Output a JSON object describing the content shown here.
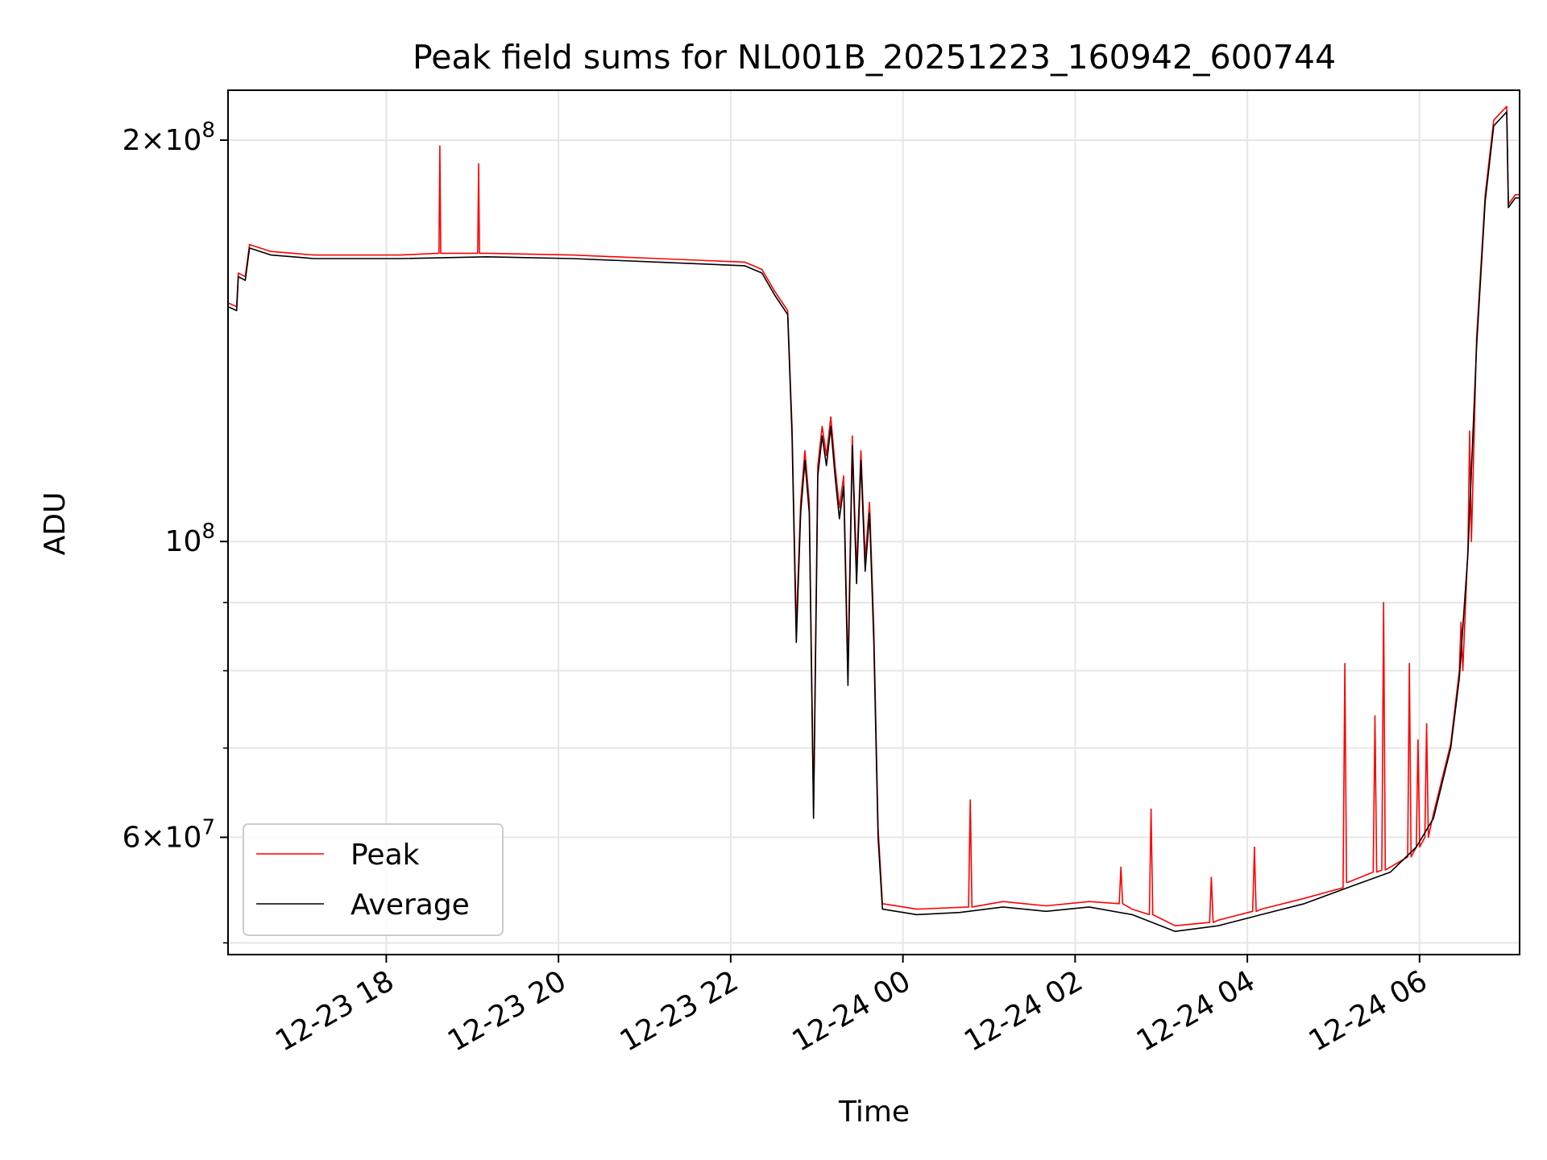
{
  "chart_data": {
    "type": "line",
    "title": "Peak field sums for NL001B_20251223_160942_600744",
    "xlabel": "Time",
    "ylabel": "ADU",
    "yscale": "log",
    "ylim": [
      49000000,
      218000000
    ],
    "x_unit": "hours since 2025-12-23 16:09:42",
    "xlim": [
      0.0,
      15.0
    ],
    "grid": true,
    "legend_position": "lower-left",
    "x_ticks": [
      {
        "label": "12-23 18",
        "value": 1.838
      },
      {
        "label": "12-23 20",
        "value": 3.838
      },
      {
        "label": "12-23 22",
        "value": 5.838
      },
      {
        "label": "12-24 00",
        "value": 7.838
      },
      {
        "label": "12-24 02",
        "value": 9.838
      },
      {
        "label": "12-24 04",
        "value": 11.838
      },
      {
        "label": "12-24 06",
        "value": 13.838
      }
    ],
    "y_major_ticks": [
      {
        "value": 60000000,
        "mantissa": "6",
        "base": "10",
        "exp": "7"
      },
      {
        "value": 100000000,
        "mantissa": "",
        "base": "10",
        "exp": "8"
      },
      {
        "value": 200000000,
        "mantissa": "2",
        "base": "10",
        "exp": "8"
      }
    ],
    "y_minor_ticks": [
      50000000,
      70000000,
      80000000,
      90000000
    ],
    "series": [
      {
        "name": "Average",
        "color": "#000000",
        "points": [
          [
            0.0,
            150000000
          ],
          [
            0.1,
            149000000
          ],
          [
            0.12,
            158000000
          ],
          [
            0.2,
            157000000
          ],
          [
            0.25,
            166000000
          ],
          [
            0.5,
            164000000
          ],
          [
            1.0,
            163000000
          ],
          [
            2.0,
            163000000
          ],
          [
            3.0,
            163500000
          ],
          [
            4.0,
            163000000
          ],
          [
            5.0,
            162000000
          ],
          [
            6.0,
            161000000
          ],
          [
            6.2,
            159000000
          ],
          [
            6.35,
            153000000
          ],
          [
            6.5,
            148000000
          ],
          [
            6.55,
            120000000
          ],
          [
            6.6,
            84000000
          ],
          [
            6.65,
            105000000
          ],
          [
            6.7,
            115000000
          ],
          [
            6.75,
            105000000
          ],
          [
            6.8,
            62000000
          ],
          [
            6.85,
            112000000
          ],
          [
            6.9,
            120000000
          ],
          [
            6.95,
            114000000
          ],
          [
            7.0,
            122000000
          ],
          [
            7.05,
            112000000
          ],
          [
            7.1,
            104000000
          ],
          [
            7.15,
            110000000
          ],
          [
            7.2,
            78000000
          ],
          [
            7.25,
            118000000
          ],
          [
            7.3,
            93000000
          ],
          [
            7.35,
            115000000
          ],
          [
            7.4,
            95000000
          ],
          [
            7.45,
            105000000
          ],
          [
            7.5,
            84000000
          ],
          [
            7.55,
            60000000
          ],
          [
            7.6,
            53000000
          ],
          [
            8.0,
            52500000
          ],
          [
            8.5,
            52700000
          ],
          [
            9.0,
            53200000
          ],
          [
            9.5,
            52800000
          ],
          [
            10.0,
            53200000
          ],
          [
            10.5,
            52500000
          ],
          [
            11.0,
            51000000
          ],
          [
            11.5,
            51500000
          ],
          [
            12.0,
            52500000
          ],
          [
            12.5,
            53500000
          ],
          [
            13.0,
            55000000
          ],
          [
            13.5,
            56500000
          ],
          [
            13.8,
            59000000
          ],
          [
            14.0,
            62000000
          ],
          [
            14.2,
            70000000
          ],
          [
            14.3,
            79000000
          ],
          [
            14.4,
            98000000
          ],
          [
            14.5,
            140000000
          ],
          [
            14.6,
            180000000
          ],
          [
            14.7,
            205000000
          ],
          [
            14.85,
            210000000
          ],
          [
            14.87,
            178000000
          ],
          [
            14.95,
            181000000
          ],
          [
            15.0,
            181000000
          ]
        ]
      },
      {
        "name": "Peak",
        "color": "#ff0000",
        "points": [
          [
            0.0,
            151000000
          ],
          [
            0.1,
            150000000
          ],
          [
            0.12,
            159000000
          ],
          [
            0.2,
            158000000
          ],
          [
            0.25,
            167000000
          ],
          [
            0.5,
            165000000
          ],
          [
            1.0,
            164000000
          ],
          [
            2.0,
            164000000
          ],
          [
            2.45,
            164500000
          ],
          [
            2.46,
            198000000
          ],
          [
            2.47,
            164500000
          ],
          [
            2.9,
            164500000
          ],
          [
            2.91,
            192000000
          ],
          [
            2.92,
            164500000
          ],
          [
            3.0,
            164500000
          ],
          [
            4.0,
            164000000
          ],
          [
            5.0,
            163000000
          ],
          [
            6.0,
            162000000
          ],
          [
            6.2,
            160000000
          ],
          [
            6.35,
            154000000
          ],
          [
            6.5,
            149000000
          ],
          [
            6.55,
            122000000
          ],
          [
            6.6,
            86000000
          ],
          [
            6.65,
            107000000
          ],
          [
            6.7,
            117000000
          ],
          [
            6.75,
            107000000
          ],
          [
            6.8,
            63000000
          ],
          [
            6.85,
            114000000
          ],
          [
            6.9,
            122000000
          ],
          [
            6.95,
            116000000
          ],
          [
            7.0,
            124000000
          ],
          [
            7.05,
            114000000
          ],
          [
            7.1,
            106000000
          ],
          [
            7.15,
            112000000
          ],
          [
            7.2,
            80000000
          ],
          [
            7.25,
            120000000
          ],
          [
            7.3,
            95000000
          ],
          [
            7.35,
            117000000
          ],
          [
            7.4,
            97000000
          ],
          [
            7.45,
            107000000
          ],
          [
            7.5,
            86000000
          ],
          [
            7.55,
            61000000
          ],
          [
            7.6,
            53500000
          ],
          [
            8.0,
            53000000
          ],
          [
            8.6,
            53200000
          ],
          [
            8.62,
            64000000
          ],
          [
            8.64,
            53200000
          ],
          [
            9.0,
            53700000
          ],
          [
            9.5,
            53300000
          ],
          [
            10.0,
            53700000
          ],
          [
            10.35,
            53500000
          ],
          [
            10.37,
            57000000
          ],
          [
            10.39,
            53500000
          ],
          [
            10.5,
            53000000
          ],
          [
            10.7,
            52500000
          ],
          [
            10.72,
            63000000
          ],
          [
            10.74,
            52500000
          ],
          [
            11.0,
            51500000
          ],
          [
            11.4,
            51800000
          ],
          [
            11.42,
            56000000
          ],
          [
            11.44,
            51800000
          ],
          [
            11.5,
            52000000
          ],
          [
            11.9,
            52800000
          ],
          [
            11.92,
            59000000
          ],
          [
            11.94,
            52800000
          ],
          [
            12.0,
            53000000
          ],
          [
            12.5,
            54000000
          ],
          [
            12.95,
            55000000
          ],
          [
            12.97,
            81000000
          ],
          [
            12.99,
            55500000
          ],
          [
            13.0,
            55500000
          ],
          [
            13.3,
            56500000
          ],
          [
            13.32,
            74000000
          ],
          [
            13.34,
            56500000
          ],
          [
            13.4,
            56700000
          ],
          [
            13.42,
            90000000
          ],
          [
            13.44,
            56700000
          ],
          [
            13.7,
            58000000
          ],
          [
            13.72,
            81000000
          ],
          [
            13.74,
            58000000
          ],
          [
            13.8,
            59000000
          ],
          [
            13.82,
            71000000
          ],
          [
            13.84,
            59000000
          ],
          [
            13.9,
            60000000
          ],
          [
            13.92,
            73000000
          ],
          [
            13.94,
            60000000
          ],
          [
            14.0,
            62500000
          ],
          [
            14.2,
            70500000
          ],
          [
            14.3,
            80000000
          ],
          [
            14.32,
            87000000
          ],
          [
            14.34,
            80000000
          ],
          [
            14.4,
            99000000
          ],
          [
            14.42,
            121000000
          ],
          [
            14.44,
            100000000
          ],
          [
            14.5,
            142000000
          ],
          [
            14.6,
            182000000
          ],
          [
            14.7,
            207000000
          ],
          [
            14.85,
            212000000
          ],
          [
            14.87,
            179000000
          ],
          [
            14.95,
            182000000
          ],
          [
            15.0,
            182000000
          ]
        ]
      }
    ]
  }
}
